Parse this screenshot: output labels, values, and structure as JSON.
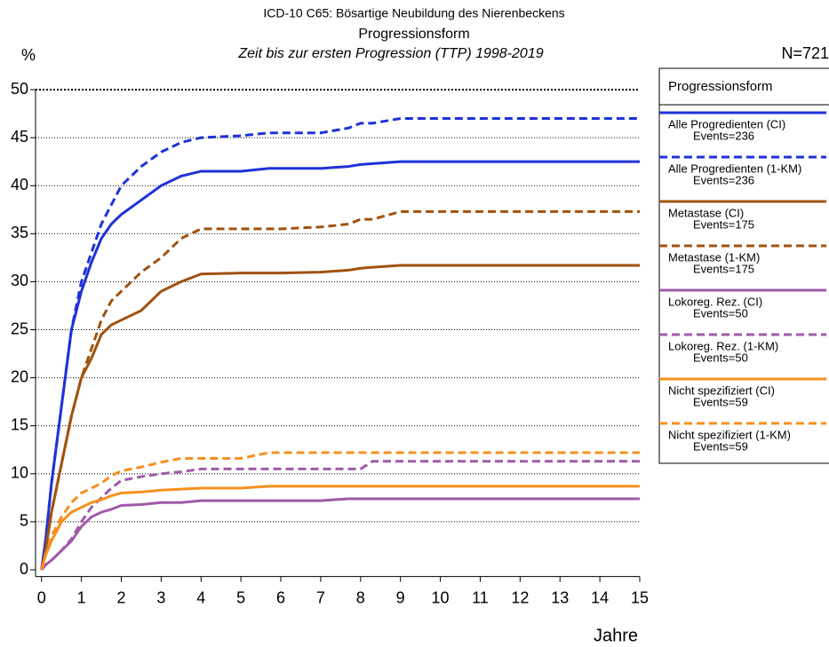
{
  "chart_data": {
    "type": "line",
    "title": "ICD-10 C65: Bösartige Neubildung des Nierenbeckens",
    "subtitle": "Progressionsform",
    "subtitle2": "Zeit bis zur ersten Progression (TTP) 1998-2019",
    "y_label": "%",
    "x_label": "Jahre",
    "n_label": "N=721",
    "legend_title": "Progressionsform",
    "x": [
      0,
      0.1,
      0.25,
      0.5,
      0.75,
      1,
      1.25,
      1.5,
      1.75,
      2,
      2.5,
      3,
      3.5,
      4,
      5,
      5.7,
      6,
      7,
      7.7,
      8,
      8.3,
      9,
      10,
      15
    ],
    "series": [
      {
        "name": "Alle Progredienten (CI)",
        "events": "Events=236",
        "color": "#1e32d8",
        "dashed": false,
        "values": [
          0,
          3,
          9,
          17,
          25,
          29,
          32,
          34.5,
          36,
          37,
          38.5,
          40,
          41,
          41.5,
          41.5,
          41.8,
          41.8,
          41.8,
          42,
          42.2,
          42.3,
          42.5,
          42.5,
          42.5
        ]
      },
      {
        "name": "Alle Progredienten (1-KM)",
        "events": "Events=236",
        "color": "#1e32d8",
        "dashed": true,
        "values": [
          0,
          3,
          9,
          17,
          25,
          30,
          33,
          36,
          38,
          40,
          42,
          43.5,
          44.5,
          45,
          45.2,
          45.5,
          45.5,
          45.5,
          46,
          46.5,
          46.5,
          47,
          47,
          47
        ]
      },
      {
        "name": "Metastase (CI)",
        "events": "Events=175",
        "color": "#a0520f",
        "dashed": false,
        "values": [
          0,
          2,
          6,
          11,
          16,
          20,
          22,
          24.5,
          25.5,
          26,
          27,
          29,
          30,
          30.8,
          30.9,
          30.9,
          30.9,
          31,
          31.2,
          31.4,
          31.5,
          31.7,
          31.7,
          31.7
        ]
      },
      {
        "name": "Metastase (1-KM)",
        "events": "Events=175",
        "color": "#a0520f",
        "dashed": true,
        "values": [
          0,
          2,
          6,
          11,
          16,
          20,
          23,
          26,
          28,
          29,
          31,
          32.5,
          34.5,
          35.5,
          35.5,
          35.5,
          35.5,
          35.7,
          36,
          36.5,
          36.5,
          37.3,
          37.3,
          37.3
        ]
      },
      {
        "name": "Lokoreg. Rez. (CI)",
        "events": "Events=50",
        "color": "#a05aa8",
        "dashed": false,
        "values": [
          0,
          0.5,
          1,
          2,
          3,
          4.5,
          5.5,
          6,
          6.3,
          6.7,
          6.8,
          7,
          7,
          7.2,
          7.2,
          7.2,
          7.2,
          7.2,
          7.4,
          7.4,
          7.4,
          7.4,
          7.4,
          7.4
        ]
      },
      {
        "name": "Lokoreg. Rez. (1-KM)",
        "events": "Events=50",
        "color": "#a05aa8",
        "dashed": true,
        "values": [
          0,
          0.5,
          1,
          2,
          3.2,
          5,
          6.5,
          7.5,
          8.5,
          9.3,
          9.7,
          10,
          10.2,
          10.5,
          10.5,
          10.5,
          10.5,
          10.5,
          10.5,
          10.5,
          11.3,
          11.3,
          11.3,
          11.3
        ]
      },
      {
        "name": "Nicht spezifiziert (CI)",
        "events": "Events=59",
        "color": "#f5901e",
        "dashed": false,
        "values": [
          0,
          1.5,
          3,
          5,
          6,
          6.5,
          7,
          7.3,
          7.7,
          8,
          8.1,
          8.3,
          8.4,
          8.5,
          8.5,
          8.7,
          8.7,
          8.7,
          8.7,
          8.7,
          8.7,
          8.7,
          8.7,
          8.7
        ]
      },
      {
        "name": "Nicht spezifiziert (1-KM)",
        "events": "Events=59",
        "color": "#f5901e",
        "dashed": true,
        "values": [
          0,
          1.5,
          3.5,
          5.5,
          7,
          8,
          8.5,
          9,
          9.8,
          10.3,
          10.7,
          11.2,
          11.6,
          11.6,
          11.6,
          12.2,
          12.2,
          12.2,
          12.2,
          12.2,
          12.2,
          12.2,
          12.2,
          12.2
        ]
      }
    ],
    "xlim": [
      -0.15,
      15
    ],
    "ylim": [
      -0.7,
      50
    ],
    "xticks": [
      0,
      1,
      2,
      3,
      4,
      5,
      6,
      7,
      8,
      9,
      10,
      11,
      12,
      13,
      14,
      15
    ],
    "yticks": [
      0,
      5,
      10,
      15,
      20,
      25,
      30,
      35,
      40,
      45,
      50
    ],
    "grid": true
  }
}
